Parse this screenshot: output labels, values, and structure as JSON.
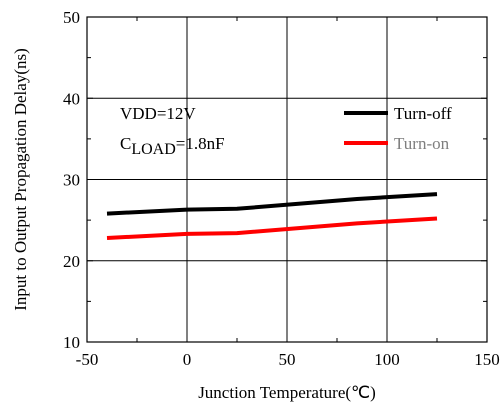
{
  "chart_data": {
    "type": "line",
    "xlabel": "Junction Temperature(℃)",
    "ylabel": "Input to Output Propagation Delay(ns)",
    "xlim": [
      -50,
      150
    ],
    "ylim": [
      10,
      50
    ],
    "x_ticks": [
      -50,
      0,
      50,
      100,
      150
    ],
    "y_ticks": [
      10,
      20,
      30,
      40,
      50
    ],
    "x_tick_labels": [
      "-50",
      "0",
      "50",
      "100",
      "150"
    ],
    "y_tick_labels": [
      "10",
      "20",
      "30",
      "40",
      "50"
    ],
    "grid": true,
    "legend_placement": "top-right",
    "annotation": {
      "line1": "VDD=12V",
      "line2_base": "C",
      "line2_sub": "LOAD",
      "line2_rest": "=1.8nF"
    },
    "series": [
      {
        "name": "Turn-off",
        "color": "#000000",
        "legend_text_color": "#000000",
        "x": [
          -40,
          0,
          25,
          85,
          125
        ],
        "y": [
          25.8,
          26.3,
          26.4,
          27.6,
          28.2
        ]
      },
      {
        "name": "Turn-on",
        "color": "#ff0000",
        "legend_text_color": "#7f7f7f",
        "x": [
          -40,
          0,
          25,
          85,
          125
        ],
        "y": [
          22.8,
          23.3,
          23.4,
          24.6,
          25.2
        ]
      }
    ]
  }
}
